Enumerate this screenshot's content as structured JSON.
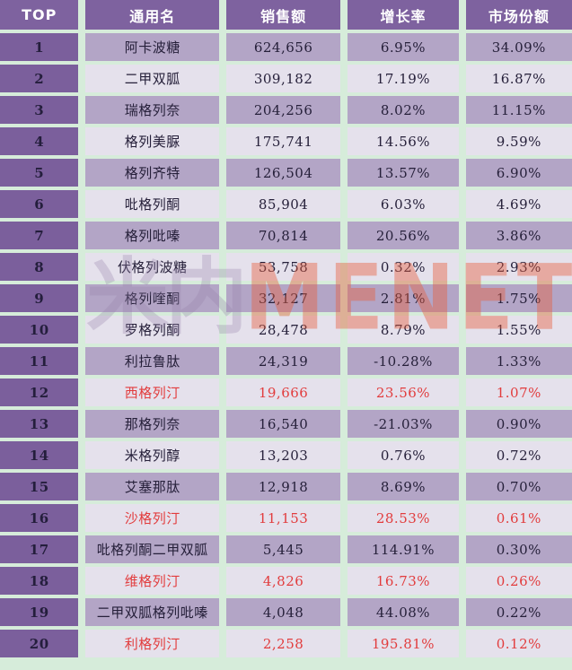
{
  "colors": {
    "background_gap": "#D6ECDA",
    "header_purple": "#7E629F",
    "rank_column_purple": "#7B5F9C",
    "odd_row": "#B3A5C6",
    "even_row": "#E5E1EC",
    "text_dark": "#26203A",
    "text_highlight_red": "#E23C3D",
    "header_text": "#FFFFFF",
    "watermark_orange": "rgba(230,92,58,0.42)"
  },
  "watermark": {
    "cn": "米内",
    "en": "MENET"
  },
  "table": {
    "columns": [
      {
        "key": "top",
        "label": "TOP"
      },
      {
        "key": "name",
        "label": "通用名"
      },
      {
        "key": "sales",
        "label": "销售额"
      },
      {
        "key": "growth",
        "label": "增长率"
      },
      {
        "key": "share",
        "label": "市场份额"
      }
    ],
    "rows": [
      {
        "top": "1",
        "name": "阿卡波糖",
        "sales": "624,656",
        "growth": "6.95%",
        "share": "34.09%",
        "highlight": false
      },
      {
        "top": "2",
        "name": "二甲双胍",
        "sales": "309,182",
        "growth": "17.19%",
        "share": "16.87%",
        "highlight": false
      },
      {
        "top": "3",
        "name": "瑞格列奈",
        "sales": "204,256",
        "growth": "8.02%",
        "share": "11.15%",
        "highlight": false
      },
      {
        "top": "4",
        "name": "格列美脲",
        "sales": "175,741",
        "growth": "14.56%",
        "share": "9.59%",
        "highlight": false
      },
      {
        "top": "5",
        "name": "格列齐特",
        "sales": "126,504",
        "growth": "13.57%",
        "share": "6.90%",
        "highlight": false
      },
      {
        "top": "6",
        "name": "吡格列酮",
        "sales": "85,904",
        "growth": "6.03%",
        "share": "4.69%",
        "highlight": false
      },
      {
        "top": "7",
        "name": "格列吡嗪",
        "sales": "70,814",
        "growth": "20.56%",
        "share": "3.86%",
        "highlight": false
      },
      {
        "top": "8",
        "name": "伏格列波糖",
        "sales": "53,758",
        "growth": "0.32%",
        "share": "2.93%",
        "highlight": false
      },
      {
        "top": "9",
        "name": "格列喹酮",
        "sales": "32,127",
        "growth": "2.81%",
        "share": "1.75%",
        "highlight": false
      },
      {
        "top": "10",
        "name": "罗格列酮",
        "sales": "28,478",
        "growth": "8.79%",
        "share": "1.55%",
        "highlight": false
      },
      {
        "top": "11",
        "name": "利拉鲁肽",
        "sales": "24,319",
        "growth": "-10.28%",
        "share": "1.33%",
        "highlight": false
      },
      {
        "top": "12",
        "name": "西格列汀",
        "sales": "19,666",
        "growth": "23.56%",
        "share": "1.07%",
        "highlight": true
      },
      {
        "top": "13",
        "name": "那格列奈",
        "sales": "16,540",
        "growth": "-21.03%",
        "share": "0.90%",
        "highlight": false
      },
      {
        "top": "14",
        "name": "米格列醇",
        "sales": "13,203",
        "growth": "0.76%",
        "share": "0.72%",
        "highlight": false
      },
      {
        "top": "15",
        "name": "艾塞那肽",
        "sales": "12,918",
        "growth": "8.69%",
        "share": "0.70%",
        "highlight": false
      },
      {
        "top": "16",
        "name": "沙格列汀",
        "sales": "11,153",
        "growth": "28.53%",
        "share": "0.61%",
        "highlight": true
      },
      {
        "top": "17",
        "name": "吡格列酮二甲双胍",
        "sales": "5,445",
        "growth": "114.91%",
        "share": "0.30%",
        "highlight": false
      },
      {
        "top": "18",
        "name": "维格列汀",
        "sales": "4,826",
        "growth": "16.73%",
        "share": "0.26%",
        "highlight": true
      },
      {
        "top": "19",
        "name": "二甲双胍格列吡嗪",
        "sales": "4,048",
        "growth": "44.08%",
        "share": "0.22%",
        "highlight": false
      },
      {
        "top": "20",
        "name": "利格列汀",
        "sales": "2,258",
        "growth": "195.81%",
        "share": "0.12%",
        "highlight": true
      }
    ]
  }
}
